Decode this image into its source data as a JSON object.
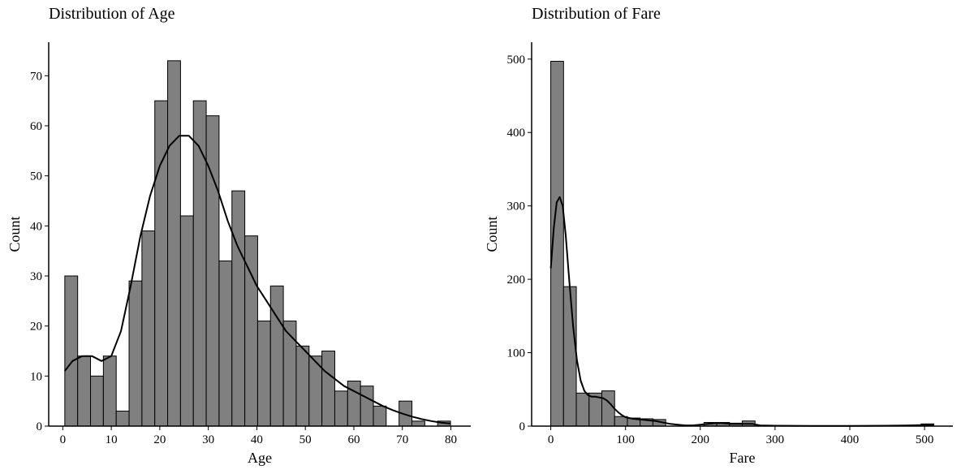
{
  "chart_data": [
    {
      "type": "bar",
      "title": "Distribution of Age",
      "xlabel": "Age",
      "ylabel": "Count",
      "xlim": [
        -2.9,
        84.1
      ],
      "ylim": [
        0,
        76.7
      ],
      "xticks": [
        0,
        10,
        20,
        30,
        40,
        50,
        60,
        70,
        80
      ],
      "yticks": [
        0,
        10,
        20,
        30,
        40,
        50,
        60,
        70
      ],
      "bin_start": 0.42,
      "bin_width": 2.65,
      "values": [
        30,
        14,
        10,
        14,
        3,
        29,
        39,
        65,
        73,
        42,
        65,
        62,
        33,
        47,
        38,
        21,
        28,
        21,
        16,
        14,
        15,
        7,
        9,
        8,
        4,
        0,
        5,
        1,
        0,
        1
      ],
      "kde": {
        "x": [
          0.42,
          2,
          4,
          6,
          8,
          10,
          12,
          14,
          16,
          18,
          20,
          22,
          24,
          26,
          28,
          30,
          32,
          34,
          36,
          38,
          40,
          42,
          44,
          46,
          48,
          50,
          52,
          54,
          56,
          58,
          60,
          62,
          64,
          66,
          68,
          70,
          72,
          74,
          76,
          78,
          80
        ],
        "y": [
          11,
          13,
          14,
          14,
          13,
          14,
          19,
          28,
          38,
          46,
          52,
          56,
          58,
          58,
          56,
          52,
          47,
          41,
          36,
          32,
          28,
          25,
          22,
          19,
          17,
          15,
          13,
          11,
          9.5,
          8,
          7,
          6,
          5,
          4,
          3.2,
          2.5,
          1.9,
          1.4,
          1,
          0.7,
          0.5
        ]
      },
      "bar_color": "#808080",
      "line_color": "#000000",
      "grid": false
    },
    {
      "type": "bar",
      "title": "Distribution of Fare",
      "xlabel": "Fare",
      "ylabel": "Count",
      "xlim": [
        -25.6,
        537.9
      ],
      "ylim": [
        0,
        523
      ],
      "xticks": [
        0,
        100,
        200,
        300,
        400,
        500
      ],
      "yticks": [
        0,
        100,
        200,
        300,
        400,
        500
      ],
      "bin_start": 0,
      "bin_width": 17.08,
      "values": [
        497,
        190,
        45,
        45,
        48,
        13,
        11,
        10,
        9,
        0,
        0,
        0,
        5,
        5,
        4,
        7,
        0,
        0,
        0,
        0,
        0,
        0,
        0,
        0,
        0,
        0,
        0,
        0,
        0,
        3
      ],
      "kde": {
        "x": [
          0,
          4,
          8,
          12,
          16,
          20,
          25,
          30,
          35,
          40,
          45,
          50,
          55,
          60,
          65,
          70,
          75,
          80,
          85,
          90,
          95,
          100,
          110,
          120,
          130,
          140,
          150,
          160,
          170,
          180,
          190,
          200,
          210,
          220,
          230,
          240,
          250,
          260,
          270,
          280,
          300,
          350,
          400,
          450,
          480,
          500,
          512
        ],
        "y": [
          215,
          270,
          305,
          312,
          300,
          260,
          195,
          135,
          90,
          62,
          48,
          42,
          40,
          40,
          39,
          38,
          35,
          30,
          24,
          19,
          15,
          12,
          10,
          9,
          8,
          7,
          5,
          3,
          2,
          1,
          1,
          2,
          3,
          4,
          4,
          3,
          3,
          3,
          3,
          1,
          0.5,
          0.3,
          0.3,
          0.5,
          1,
          1.5,
          1.5
        ]
      },
      "bar_color": "#808080",
      "line_color": "#000000",
      "grid": false
    }
  ]
}
